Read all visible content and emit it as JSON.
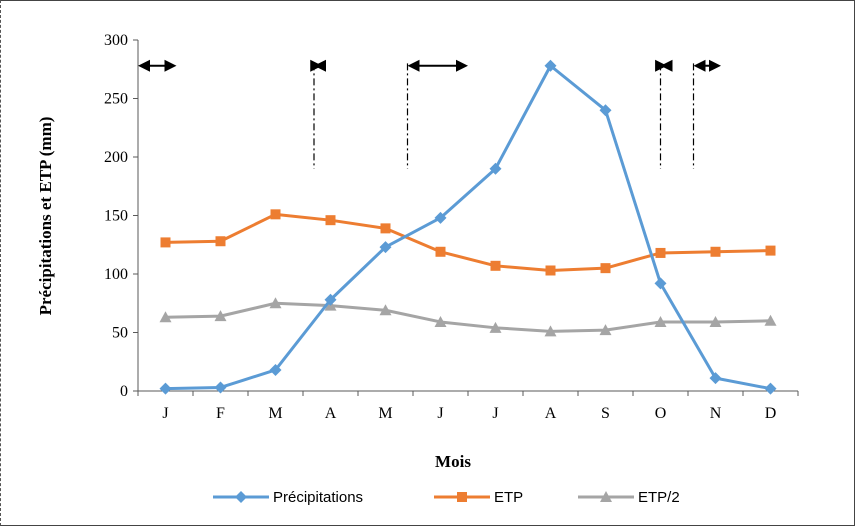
{
  "chart_data": {
    "type": "line",
    "title": "",
    "xlabel": "Mois",
    "ylabel": "Précipitations et ETP (mm)",
    "categories": [
      "J",
      "F",
      "M",
      "A",
      "M",
      "J",
      "J",
      "A",
      "S",
      "O",
      "N",
      "D"
    ],
    "ylim": [
      0,
      300
    ],
    "yticks": [
      0,
      50,
      100,
      150,
      200,
      250,
      300
    ],
    "grid": false,
    "legend_position": "bottom",
    "series": [
      {
        "name": "Précipitations",
        "color": "#5B9BD5",
        "marker": "diamond",
        "values": [
          2,
          3,
          18,
          78,
          123,
          148,
          190,
          278,
          240,
          92,
          11,
          2
        ]
      },
      {
        "name": "ETP",
        "color": "#ED7D31",
        "marker": "square",
        "values": [
          127,
          128,
          151,
          146,
          139,
          119,
          107,
          103,
          105,
          118,
          119,
          120
        ]
      },
      {
        "name": "ETP/2",
        "color": "#A5A5A5",
        "marker": "triangle",
        "values": [
          63,
          64,
          75,
          73,
          69,
          59,
          54,
          51,
          52,
          59,
          59,
          60
        ]
      }
    ],
    "annotations": [
      {
        "kind": "double-arrow",
        "from": 0,
        "to": 0.2
      },
      {
        "kind": "double-arrow",
        "from": 2.7,
        "to": 2.85
      },
      {
        "kind": "double-arrow",
        "from": 4.4,
        "to": 5.5
      },
      {
        "kind": "double-arrow",
        "from": 9,
        "to": 9.12
      },
      {
        "kind": "double-arrow",
        "from": 9.6,
        "to": 10.1
      }
    ],
    "dividers": [
      2.7,
      4.4,
      9,
      9.6
    ]
  }
}
